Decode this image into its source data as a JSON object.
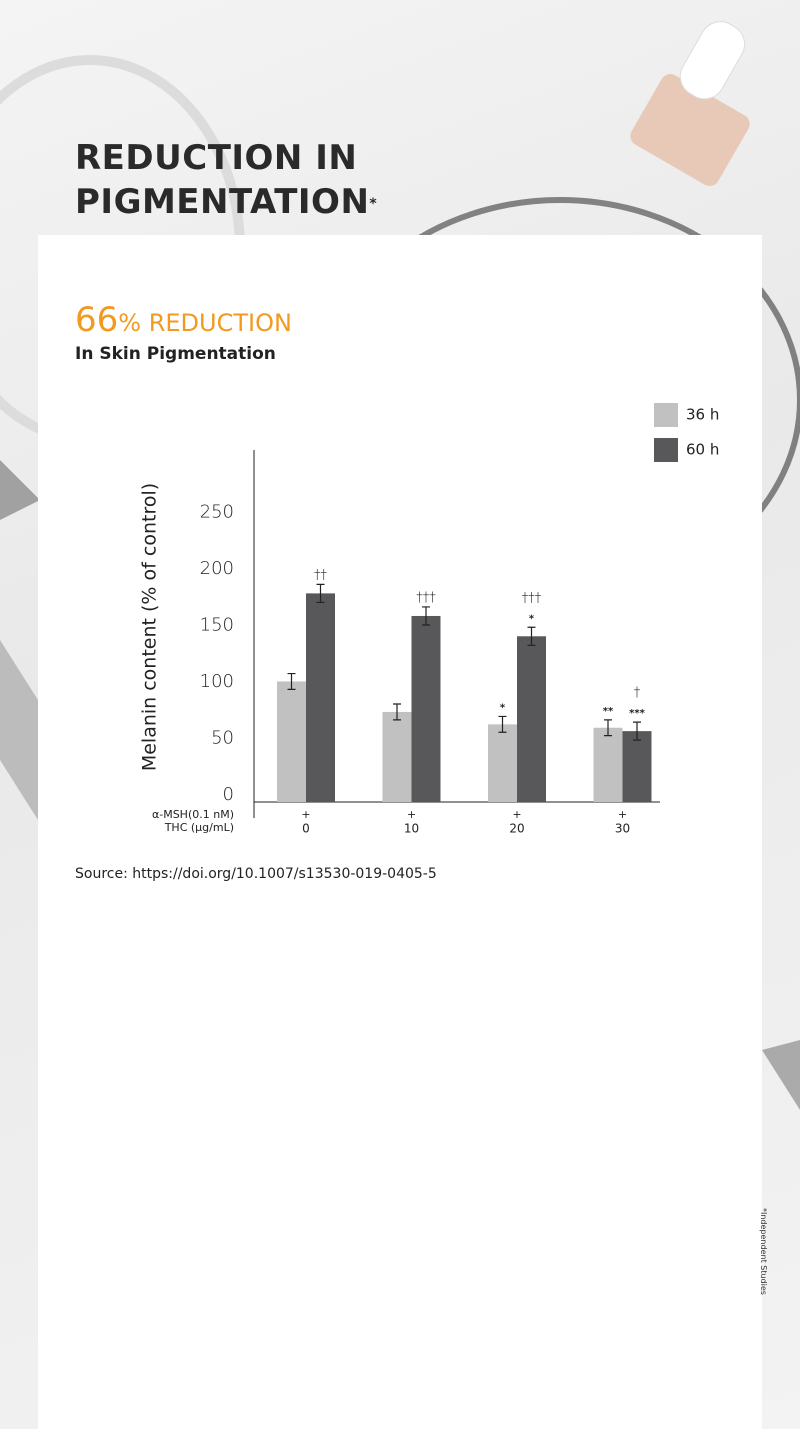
{
  "header": {
    "title_line1": "REDUCTION IN",
    "title_line2": "PIGMENTATION",
    "title_mark": "*"
  },
  "headline": {
    "number": "66",
    "text": "% REDUCTION",
    "subtitle": "In Skin Pigmentation"
  },
  "chart_data": {
    "type": "bar",
    "y_label": "Melanin content (% of control)",
    "categories": [
      "0",
      "10",
      "20",
      "30"
    ],
    "category_title": "THC (μg/mL)",
    "msh_row": [
      "+",
      "+",
      "+",
      "+"
    ],
    "msh_title": "α-MSH(0.1 nM)",
    "series": [
      {
        "name": "36 h",
        "color": "#c2c1c2",
        "values": [
          105,
          78,
          67,
          64
        ],
        "errors": [
          7,
          7,
          7,
          7
        ],
        "stars": [
          null,
          null,
          "*",
          "**"
        ],
        "daggers": [
          null,
          null,
          null,
          null
        ]
      },
      {
        "name": "60 h",
        "color": "#58585a",
        "values": [
          183,
          163,
          145,
          61
        ],
        "errors": [
          8,
          8,
          8,
          8
        ],
        "stars": [
          null,
          null,
          "*",
          "***"
        ],
        "daggers": [
          "††",
          "†††",
          "†††",
          "†"
        ]
      }
    ],
    "ylim": [
      0,
      310
    ],
    "yticks": [
      0,
      50,
      100,
      150,
      200,
      250
    ]
  },
  "source": "Source: https://doi.org/10.1007/s13530-019-0405-5",
  "footnote": "*Independent Studies"
}
